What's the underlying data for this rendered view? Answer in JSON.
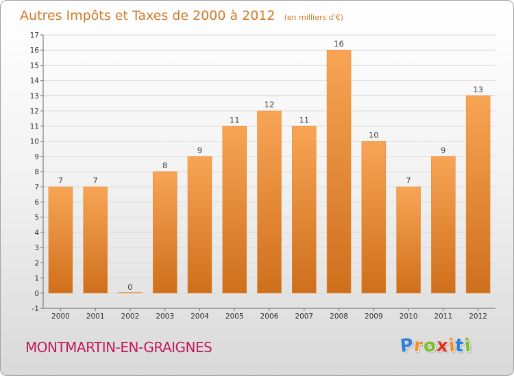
{
  "chart_data": {
    "type": "bar",
    "title": "Autres Impôts et Taxes de 2000 à 2012",
    "unit_label": "(en milliers d'€)",
    "categories": [
      "2000",
      "2001",
      "2002",
      "2003",
      "2004",
      "2005",
      "2006",
      "2007",
      "2008",
      "2009",
      "2010",
      "2011",
      "2012"
    ],
    "values": [
      7,
      7,
      0,
      8,
      9,
      11,
      12,
      11,
      16,
      10,
      7,
      9,
      13
    ],
    "data_labels": [
      "7",
      "7",
      "0",
      "8",
      "9",
      "11",
      "12",
      "11",
      "16",
      "10",
      "7",
      "9",
      "13"
    ],
    "ylim": [
      -1,
      17
    ],
    "yticks": [
      "-1",
      "0",
      "1",
      "2",
      "3",
      "4",
      "5",
      "6",
      "7",
      "8",
      "9",
      "10",
      "11",
      "12",
      "13",
      "14",
      "15",
      "16",
      "17"
    ],
    "xlabel": "",
    "ylabel": "",
    "grid": true,
    "bar_color": "#f0902f"
  },
  "footer": {
    "place": "MONTMARTIN-EN-GRAIGNES"
  },
  "brand": {
    "letters": [
      "P",
      "r",
      "o",
      "x",
      "i",
      "t",
      "i"
    ],
    "colors": [
      "#2f7fd6",
      "#f0902f",
      "#7bbf2a",
      "#e0301e",
      "#f0902f",
      "#2f7fd6",
      "#7bbf2a"
    ]
  }
}
